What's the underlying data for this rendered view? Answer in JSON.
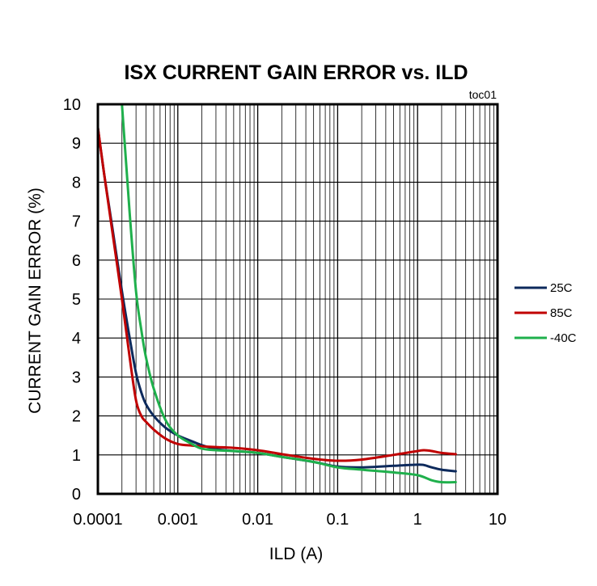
{
  "chart_data": {
    "type": "line",
    "title": "ISX CURRENT GAIN ERROR vs. ILD",
    "annotation": "toc01",
    "xlabel": "ILD (A)",
    "ylabel": "CURRENT GAIN ERROR  (%)",
    "x_scale": "log",
    "xlim": [
      0.0001,
      10
    ],
    "ylim": [
      0,
      10
    ],
    "grid": true,
    "legend_position": "right",
    "x_ticks": [
      {
        "value": 0.0001,
        "label": "0.0001"
      },
      {
        "value": 0.001,
        "label": "0.001"
      },
      {
        "value": 0.01,
        "label": "0.01"
      },
      {
        "value": 0.1,
        "label": "0.1"
      },
      {
        "value": 1,
        "label": "1"
      },
      {
        "value": 10,
        "label": "10"
      }
    ],
    "y_ticks": [
      {
        "value": 0,
        "label": "0"
      },
      {
        "value": 1,
        "label": "1"
      },
      {
        "value": 2,
        "label": "2"
      },
      {
        "value": 3,
        "label": "3"
      },
      {
        "value": 4,
        "label": "4"
      },
      {
        "value": 5,
        "label": "5"
      },
      {
        "value": 6,
        "label": "6"
      },
      {
        "value": 7,
        "label": "7"
      },
      {
        "value": 8,
        "label": "8"
      },
      {
        "value": 9,
        "label": "9"
      },
      {
        "value": 10,
        "label": "10"
      }
    ],
    "series": [
      {
        "name": "25C",
        "color": "#0d2a5c",
        "x": [
          0.0001,
          0.00012,
          0.00015,
          0.0002,
          0.00025,
          0.0003,
          0.00035,
          0.0004,
          0.0005,
          0.0007,
          0.001,
          0.0015,
          0.002,
          0.003,
          0.005,
          0.01,
          0.02,
          0.05,
          0.1,
          0.2,
          0.5,
          1,
          1.2,
          1.5,
          2,
          3
        ],
        "y": [
          9.4,
          8.2,
          6.9,
          5.2,
          4.0,
          3.1,
          2.6,
          2.3,
          2.0,
          1.7,
          1.5,
          1.35,
          1.25,
          1.15,
          1.1,
          1.05,
          0.95,
          0.82,
          0.7,
          0.68,
          0.72,
          0.75,
          0.74,
          0.68,
          0.62,
          0.58
        ]
      },
      {
        "name": "85C",
        "color": "#c00000",
        "x": [
          0.0001,
          0.00012,
          0.00015,
          0.0002,
          0.00025,
          0.0003,
          0.00035,
          0.0004,
          0.0005,
          0.0007,
          0.001,
          0.0015,
          0.002,
          0.003,
          0.005,
          0.01,
          0.02,
          0.05,
          0.1,
          0.2,
          0.5,
          1,
          1.2,
          1.5,
          2,
          3
        ],
        "y": [
          9.4,
          8.2,
          6.8,
          5.0,
          3.5,
          2.4,
          2.0,
          1.85,
          1.65,
          1.42,
          1.28,
          1.24,
          1.22,
          1.2,
          1.18,
          1.12,
          1.02,
          0.9,
          0.85,
          0.88,
          1.0,
          1.1,
          1.12,
          1.1,
          1.05,
          1.02
        ]
      },
      {
        "name": "-40C",
        "color": "#1fb04c",
        "x": [
          0.0002,
          0.00022,
          0.00025,
          0.0003,
          0.00035,
          0.0004,
          0.0005,
          0.0007,
          0.001,
          0.0015,
          0.002,
          0.003,
          0.005,
          0.01,
          0.02,
          0.05,
          0.1,
          0.2,
          0.5,
          1,
          1.5,
          2,
          3
        ],
        "y": [
          10.0,
          8.8,
          7.2,
          5.2,
          4.2,
          3.5,
          2.7,
          1.9,
          1.5,
          1.28,
          1.16,
          1.12,
          1.1,
          1.05,
          0.95,
          0.82,
          0.68,
          0.62,
          0.55,
          0.48,
          0.35,
          0.3,
          0.3
        ]
      }
    ]
  }
}
